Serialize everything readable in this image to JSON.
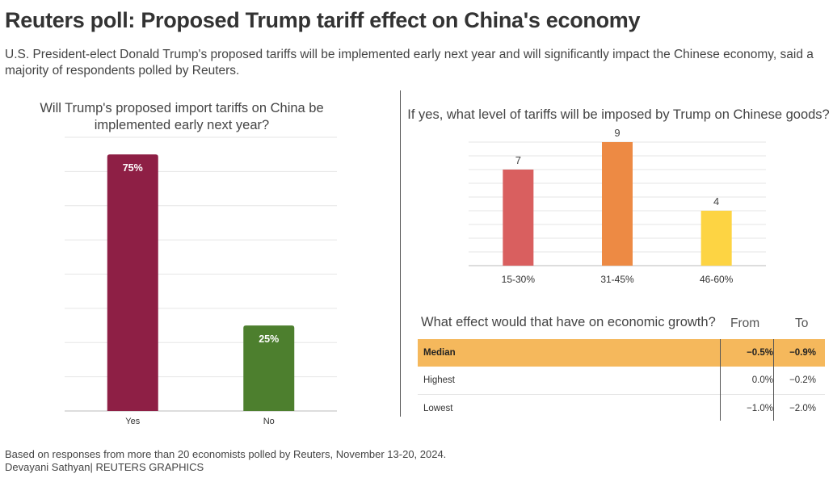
{
  "title": "Reuters poll: Proposed Trump tariff effect on China's economy",
  "subtitle": "U.S. President-elect Donald Trump's proposed tariffs will be implemented early next year and will significantly impact the Chinese economy, said a majority of respondents polled by Reuters.",
  "chart_data": [
    {
      "type": "bar",
      "title": "Will Trump's proposed import tariffs on China be implemented early next year?",
      "categories": [
        "Yes",
        "No"
      ],
      "values": [
        75,
        25
      ],
      "labels": [
        "75%",
        "25%"
      ],
      "colors": [
        "#8e1f45",
        "#4d7f2e"
      ],
      "ylim": [
        0,
        80
      ],
      "grid": true
    },
    {
      "type": "bar",
      "title": "If yes, what level of tariffs will be imposed by Trump on Chinese goods?",
      "categories": [
        "15-30%",
        "31-45%",
        "46-60%"
      ],
      "values": [
        7,
        9,
        4
      ],
      "labels": [
        "7",
        "9",
        "4"
      ],
      "colors": [
        "#d95f5f",
        "#ed8a44",
        "#fdd443"
      ],
      "ylim": [
        0,
        9
      ],
      "grid": true
    },
    {
      "type": "table",
      "title": "What effect would that have on economic growth?",
      "columns": [
        "From",
        "To"
      ],
      "rows": [
        {
          "label": "Median",
          "from": "−0.5%",
          "to": "−0.9%"
        },
        {
          "label": "Highest",
          "from": "0.0%",
          "to": "−0.2%"
        },
        {
          "label": "Lowest",
          "from": "−1.0%",
          "to": "−2.0%"
        }
      ],
      "highlight_color": "#f5b85c"
    }
  ],
  "footer": {
    "source": "Based on responses from more than 20 economists polled by Reuters, November 13-20, 2024.",
    "credit": "Devayani Sathyan| REUTERS GRAPHICS"
  }
}
